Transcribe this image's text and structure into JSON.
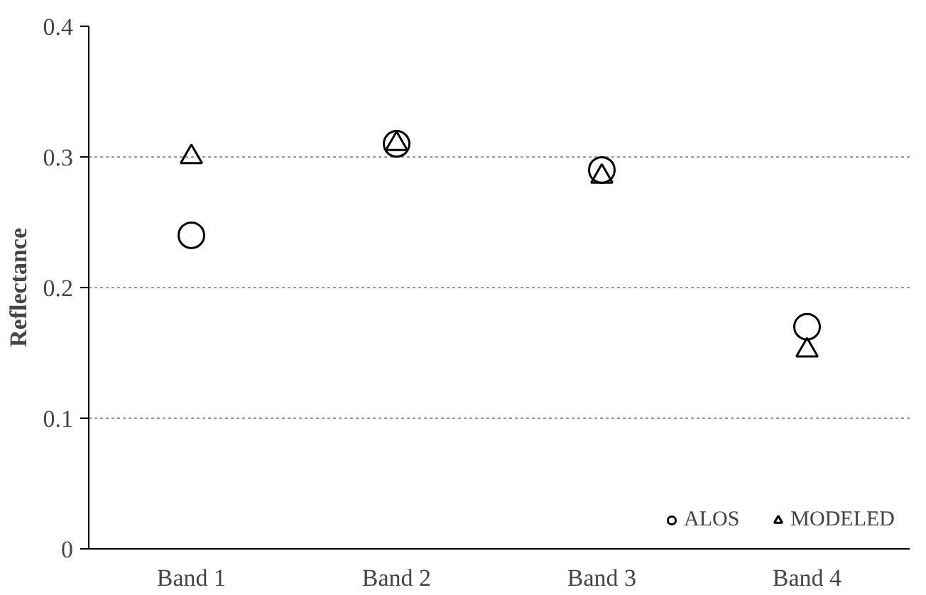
{
  "chart_data": {
    "type": "scatter",
    "ylabel": "Reflectance",
    "categories": [
      "Band 1",
      "Band 2",
      "Band 3",
      "Band 4"
    ],
    "series": [
      {
        "name": "ALOS",
        "color": "#000000",
        "marker": "circle",
        "values": [
          0.24,
          0.31,
          0.29,
          0.17
        ]
      },
      {
        "name": "MODELED",
        "color": "#000000",
        "marker": "triangle",
        "values": [
          0.3,
          0.31,
          0.285,
          0.152
        ]
      }
    ],
    "ylim": [
      0,
      0.4
    ],
    "yticks": [
      0,
      0.1,
      0.2,
      0.3,
      0.4
    ],
    "grid": "y",
    "legend": "bottom right"
  }
}
